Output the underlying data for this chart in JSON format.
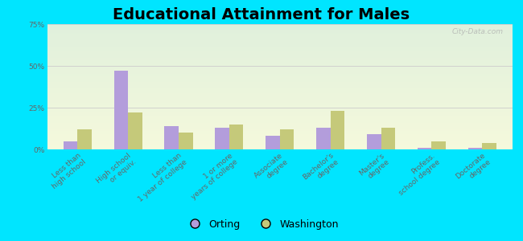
{
  "title": "Educational Attainment for Males",
  "categories": [
    "Less than\nhigh school",
    "High school\nor equiv.",
    "Less than\n1 year of college",
    "1 or more\nyears of college",
    "Associate\ndegree",
    "Bachelor's\ndegree",
    "Master's\ndegree",
    "Profess.\nschool degree",
    "Doctorate\ndegree"
  ],
  "orting": [
    5,
    47,
    14,
    13,
    8,
    13,
    9,
    1,
    1
  ],
  "washington": [
    12,
    22,
    10,
    15,
    12,
    23,
    13,
    5,
    4
  ],
  "orting_color": "#b39ddb",
  "washington_color": "#c5c97a",
  "background_color": "#00e5ff",
  "title_fontsize": 14,
  "legend_fontsize": 9,
  "tick_fontsize": 6.5,
  "ylim": [
    0,
    75
  ],
  "yticks": [
    0,
    25,
    50,
    75
  ],
  "ytick_labels": [
    "0%",
    "25%",
    "50%",
    "75%"
  ],
  "watermark": "City-Data.com",
  "bar_width": 0.28
}
